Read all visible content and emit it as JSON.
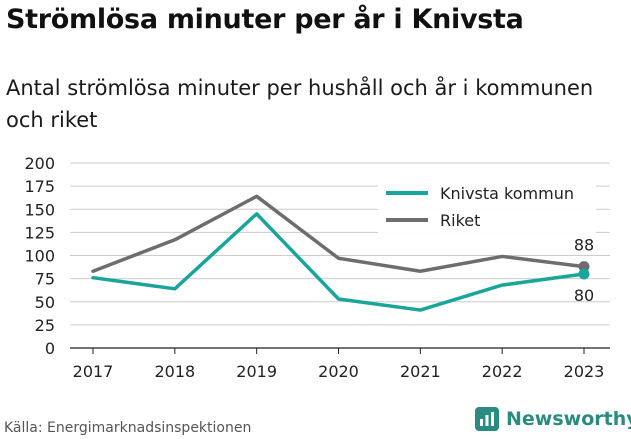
{
  "page": {
    "title": "Strömlösa minuter per år i Knivsta",
    "subtitle": "Antal strömlösa minuter per hushåll och år i kommunen och riket",
    "source": "Källa: Energimarknadsinspektionen",
    "brand": "Newsworthy",
    "brand_icon": "bar-chart-logo-icon"
  },
  "colors": {
    "knivsta": "#1aa59a",
    "riket": "#6d6d6d",
    "grid": "#cccccc",
    "axis": "#222222",
    "brand": "#2a8c80"
  },
  "chart_data": {
    "type": "line",
    "x": [
      "2017",
      "2018",
      "2019",
      "2020",
      "2021",
      "2022",
      "2023"
    ],
    "ylim": [
      0,
      200
    ],
    "yticks": [
      0,
      25,
      50,
      75,
      100,
      125,
      150,
      175,
      200
    ],
    "legend_position": "top-right",
    "grid": "horizontal",
    "series": [
      {
        "name": "Knivsta kommun",
        "color_key": "knivsta",
        "values": [
          76,
          64,
          145,
          53,
          41,
          68,
          80
        ],
        "end_label": "80"
      },
      {
        "name": "Riket",
        "color_key": "riket",
        "values": [
          83,
          117,
          164,
          97,
          83,
          99,
          88
        ],
        "end_label": "88"
      }
    ]
  }
}
